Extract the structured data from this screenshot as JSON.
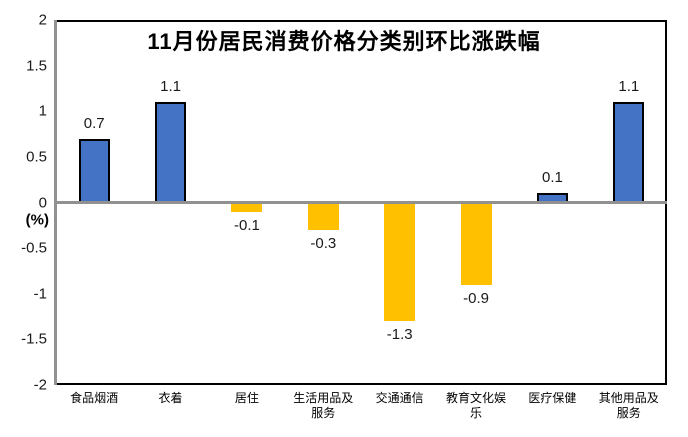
{
  "title": "11月份居民消费价格分类别环比涨跌幅",
  "axis": {
    "unit_label": "(%)",
    "y_ticks": [
      "2",
      "1.5",
      "1",
      "0.5",
      "0",
      "-0.5",
      "-1",
      "-1.5",
      "-2"
    ]
  },
  "colors": {
    "positive_bar": "#4472C4",
    "negative_bar": "#FFC000",
    "bar_border": "#000000",
    "axis_line": "#919191",
    "frame": "#000000",
    "text": "#1a1a1a",
    "background": "#FFFFFF"
  },
  "chart_data": {
    "type": "bar",
    "title": "11月份居民消费价格分类别环比涨跌幅",
    "categories": [
      "食品烟酒",
      "衣着",
      "居住",
      "生活用品及服务",
      "交通通信",
      "教育文化娱乐",
      "医疗保健",
      "其他用品及服务"
    ],
    "category_lines": [
      [
        "食品烟酒"
      ],
      [
        "衣着"
      ],
      [
        "居住"
      ],
      [
        "生活用品及",
        "服务"
      ],
      [
        "交通通信"
      ],
      [
        "教育文化娱",
        "乐"
      ],
      [
        "医疗保健"
      ],
      [
        "其他用品及",
        "服务"
      ]
    ],
    "values": [
      0.7,
      1.1,
      -0.1,
      -0.3,
      -1.3,
      -0.9,
      0.1,
      1.1
    ],
    "value_labels": [
      "0.7",
      "1.1",
      "-0.1",
      "-0.3",
      "-1.3",
      "-0.9",
      "0.1",
      "1.1"
    ],
    "xlabel": "",
    "ylabel": "(%)",
    "ylim": [
      -2,
      2
    ],
    "ytick_step": 0.5,
    "grid": false,
    "legend": "none",
    "series_color_rule": "positive bars blue with black outline, negative bars gold without outline"
  }
}
